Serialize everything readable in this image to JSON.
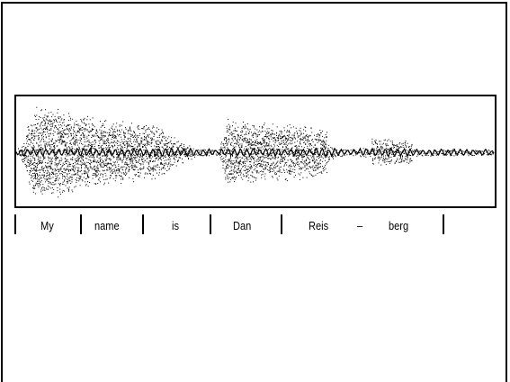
{
  "figure": {
    "words": [
      "My",
      "name",
      "is",
      "Dan",
      "Reis",
      "–",
      "berg"
    ],
    "colors": {
      "ink": "#000000",
      "background": "#ffffff"
    }
  }
}
